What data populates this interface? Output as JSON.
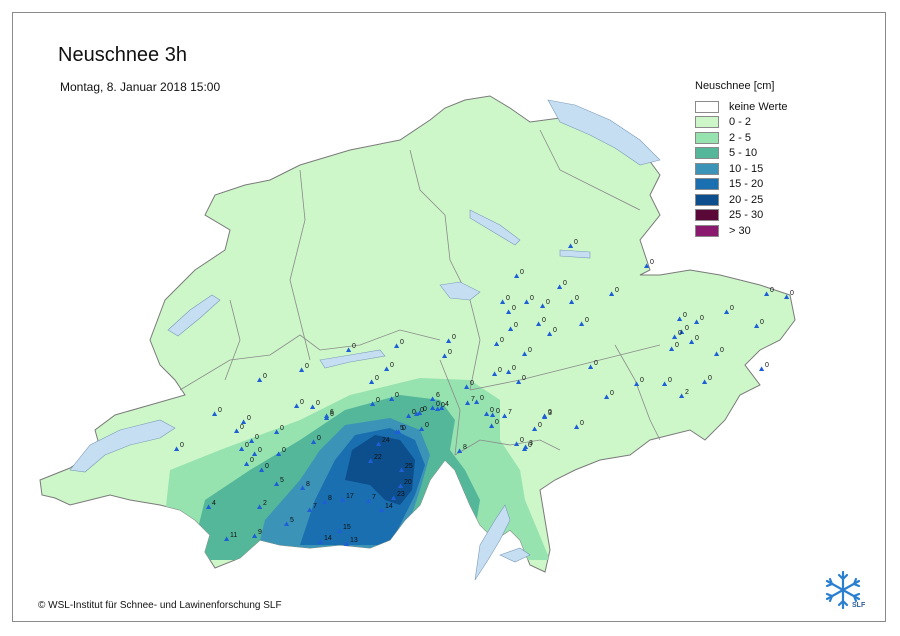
{
  "title": "Neuschnee 3h",
  "subtitle": "Montag, 8. Januar 2018 15:00",
  "credit": "© WSL-Institut für Schnee- und Lawinenforschung SLF",
  "logo_text": "SLF",
  "legend": {
    "title": "Neuschnee [cm]",
    "items": [
      {
        "label": "keine Werte",
        "color": "#ffffff"
      },
      {
        "label": "0 - 2",
        "color": "#cdf7c9"
      },
      {
        "label": "2 - 5",
        "color": "#96e3b0"
      },
      {
        "label": "5 - 10",
        "color": "#55b79a"
      },
      {
        "label": "10 - 15",
        "color": "#3b93b8"
      },
      {
        "label": "15 - 20",
        "color": "#1a6fb0"
      },
      {
        "label": "20 - 25",
        "color": "#0c4f8c"
      },
      {
        "label": "25 - 30",
        "color": "#5a0838"
      },
      {
        "label": "> 30",
        "color": "#8a1a6e"
      }
    ]
  },
  "station_values": [
    "0",
    "0",
    "0",
    "0",
    "0",
    "0",
    "0",
    "0",
    "0",
    "0",
    "0",
    "0",
    "0",
    "0",
    "0",
    "0",
    "0",
    "0",
    "0",
    "0",
    "0",
    "0",
    "0",
    "0",
    "2",
    "0",
    "0",
    "0",
    "0",
    "0",
    "0",
    "0",
    "0",
    "0",
    "0",
    "0",
    "0",
    "0",
    "0",
    "0",
    "0",
    "0",
    "0",
    "0",
    "0",
    "0",
    "0",
    "0",
    "0",
    "0",
    "0",
    "0",
    "0",
    "0",
    "0",
    "0",
    "0",
    "0",
    "0",
    "0",
    "6",
    "0",
    "0",
    "6",
    "4",
    "7",
    "0",
    "0",
    "7",
    "3",
    "0",
    "0",
    "0",
    "0",
    "0",
    "5",
    "0",
    "0",
    "0",
    "0",
    "8",
    "24",
    "22",
    "25",
    "20",
    "23",
    "14",
    "17",
    "7",
    "8",
    "8",
    "7",
    "5",
    "15",
    "14",
    "13",
    "3",
    "4",
    "2",
    "5",
    "11",
    "9",
    "6",
    "0",
    "0",
    "0",
    "0",
    "0"
  ]
}
